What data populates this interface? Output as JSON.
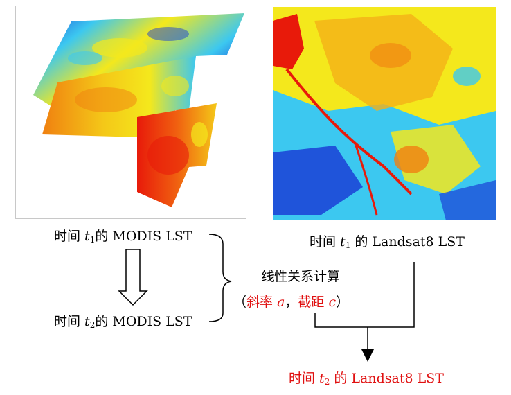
{
  "labels": {
    "modis_t1": {
      "prefix": "时间 ",
      "var": "t",
      "sub": "1",
      "suffix": "的 MODIS LST"
    },
    "modis_t2": {
      "prefix": "时间 ",
      "var": "t",
      "sub": "2",
      "suffix": "的 MODIS LST"
    },
    "landsat_t1": {
      "prefix": "时间 ",
      "var": "t",
      "sub": "1",
      "suffix": " 的 Landsat8 LST"
    },
    "landsat_t2": {
      "prefix": "时间 ",
      "var": "t",
      "sub": "2",
      "suffix": " 的 Landsat8 LST"
    },
    "linear_calc": "线性关系计算",
    "params": {
      "open": "（",
      "slope": "斜率 ",
      "a": "a",
      "sep": "，",
      "intercept": "截距 ",
      "c": "c",
      "close": "）"
    }
  },
  "colors": {
    "highlight": "#e01010",
    "heat_low": "#1a3fd6",
    "heat_mid_low": "#3cc8f0",
    "heat_mid": "#f4e81c",
    "heat_high": "#f08010",
    "heat_max": "#e81a0a"
  }
}
